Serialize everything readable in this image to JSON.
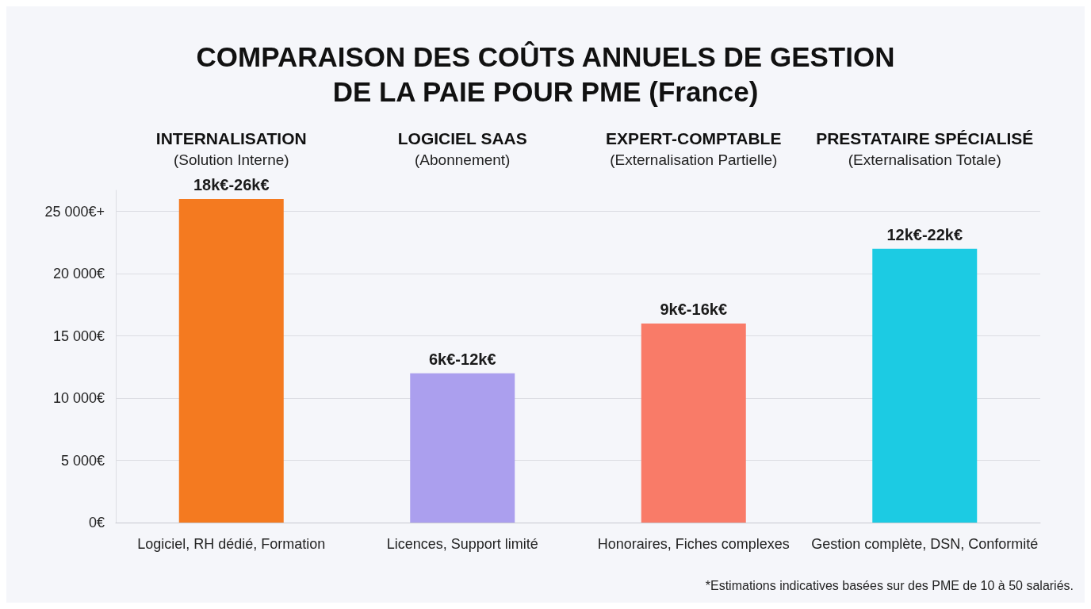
{
  "chart_data": {
    "type": "bar",
    "title": "COMPARAISON DES COÛTS ANNUELS DE GESTION\nDE LA PAIE POUR PME (France)",
    "categories": [
      "Logiciel, RH dédié, Formation",
      "Licences, Support limité",
      "Honoraires, Fiches complexes",
      "Gestion complète, DSN, Conformité"
    ],
    "values": [
      26000,
      12000,
      16000,
      22000
    ],
    "colors": [
      "#f47a20",
      "#ab9fee",
      "#f97b68",
      "#1ccbe3"
    ],
    "ylim": [
      0,
      26700
    ],
    "yticks": [
      {
        "value": 0,
        "label": "0€"
      },
      {
        "value": 5000,
        "label": "5 000€"
      },
      {
        "value": 10000,
        "label": "10 000€"
      },
      {
        "value": 15000,
        "label": "15 000€"
      },
      {
        "value": 20000,
        "label": "20 000€"
      },
      {
        "value": 25000,
        "label": "25 000€+"
      }
    ],
    "grid": "y",
    "annotations": [
      "INTERNALISATION\n(Solution Interne)",
      "LOGICIEL SAAS\n(Abonnement)",
      "EXPERT-COMPTABLE\n(Externalisation Partielle)",
      "PRESTATAIRE SPÉCIALISÉ\n(Externalisation Totale)",
      "*Estimations indicatives basées sur des PME de 10 à 50 salariés.",
      {
        "text": "18k€-26k€",
        "x": "Logiciel, RH dédié, Formation",
        "y": 26000
      },
      {
        "text": "6k€-12k€",
        "x": "Licences, Support limité",
        "y": 12000
      },
      {
        "text": "9k€-16k€",
        "x": "Honoraires, Fiches complexes",
        "y": 16000
      },
      {
        "text": "12k€-22k€",
        "x": "Gestion complète, DSN, Conformité",
        "y": 22000
      }
    ]
  }
}
